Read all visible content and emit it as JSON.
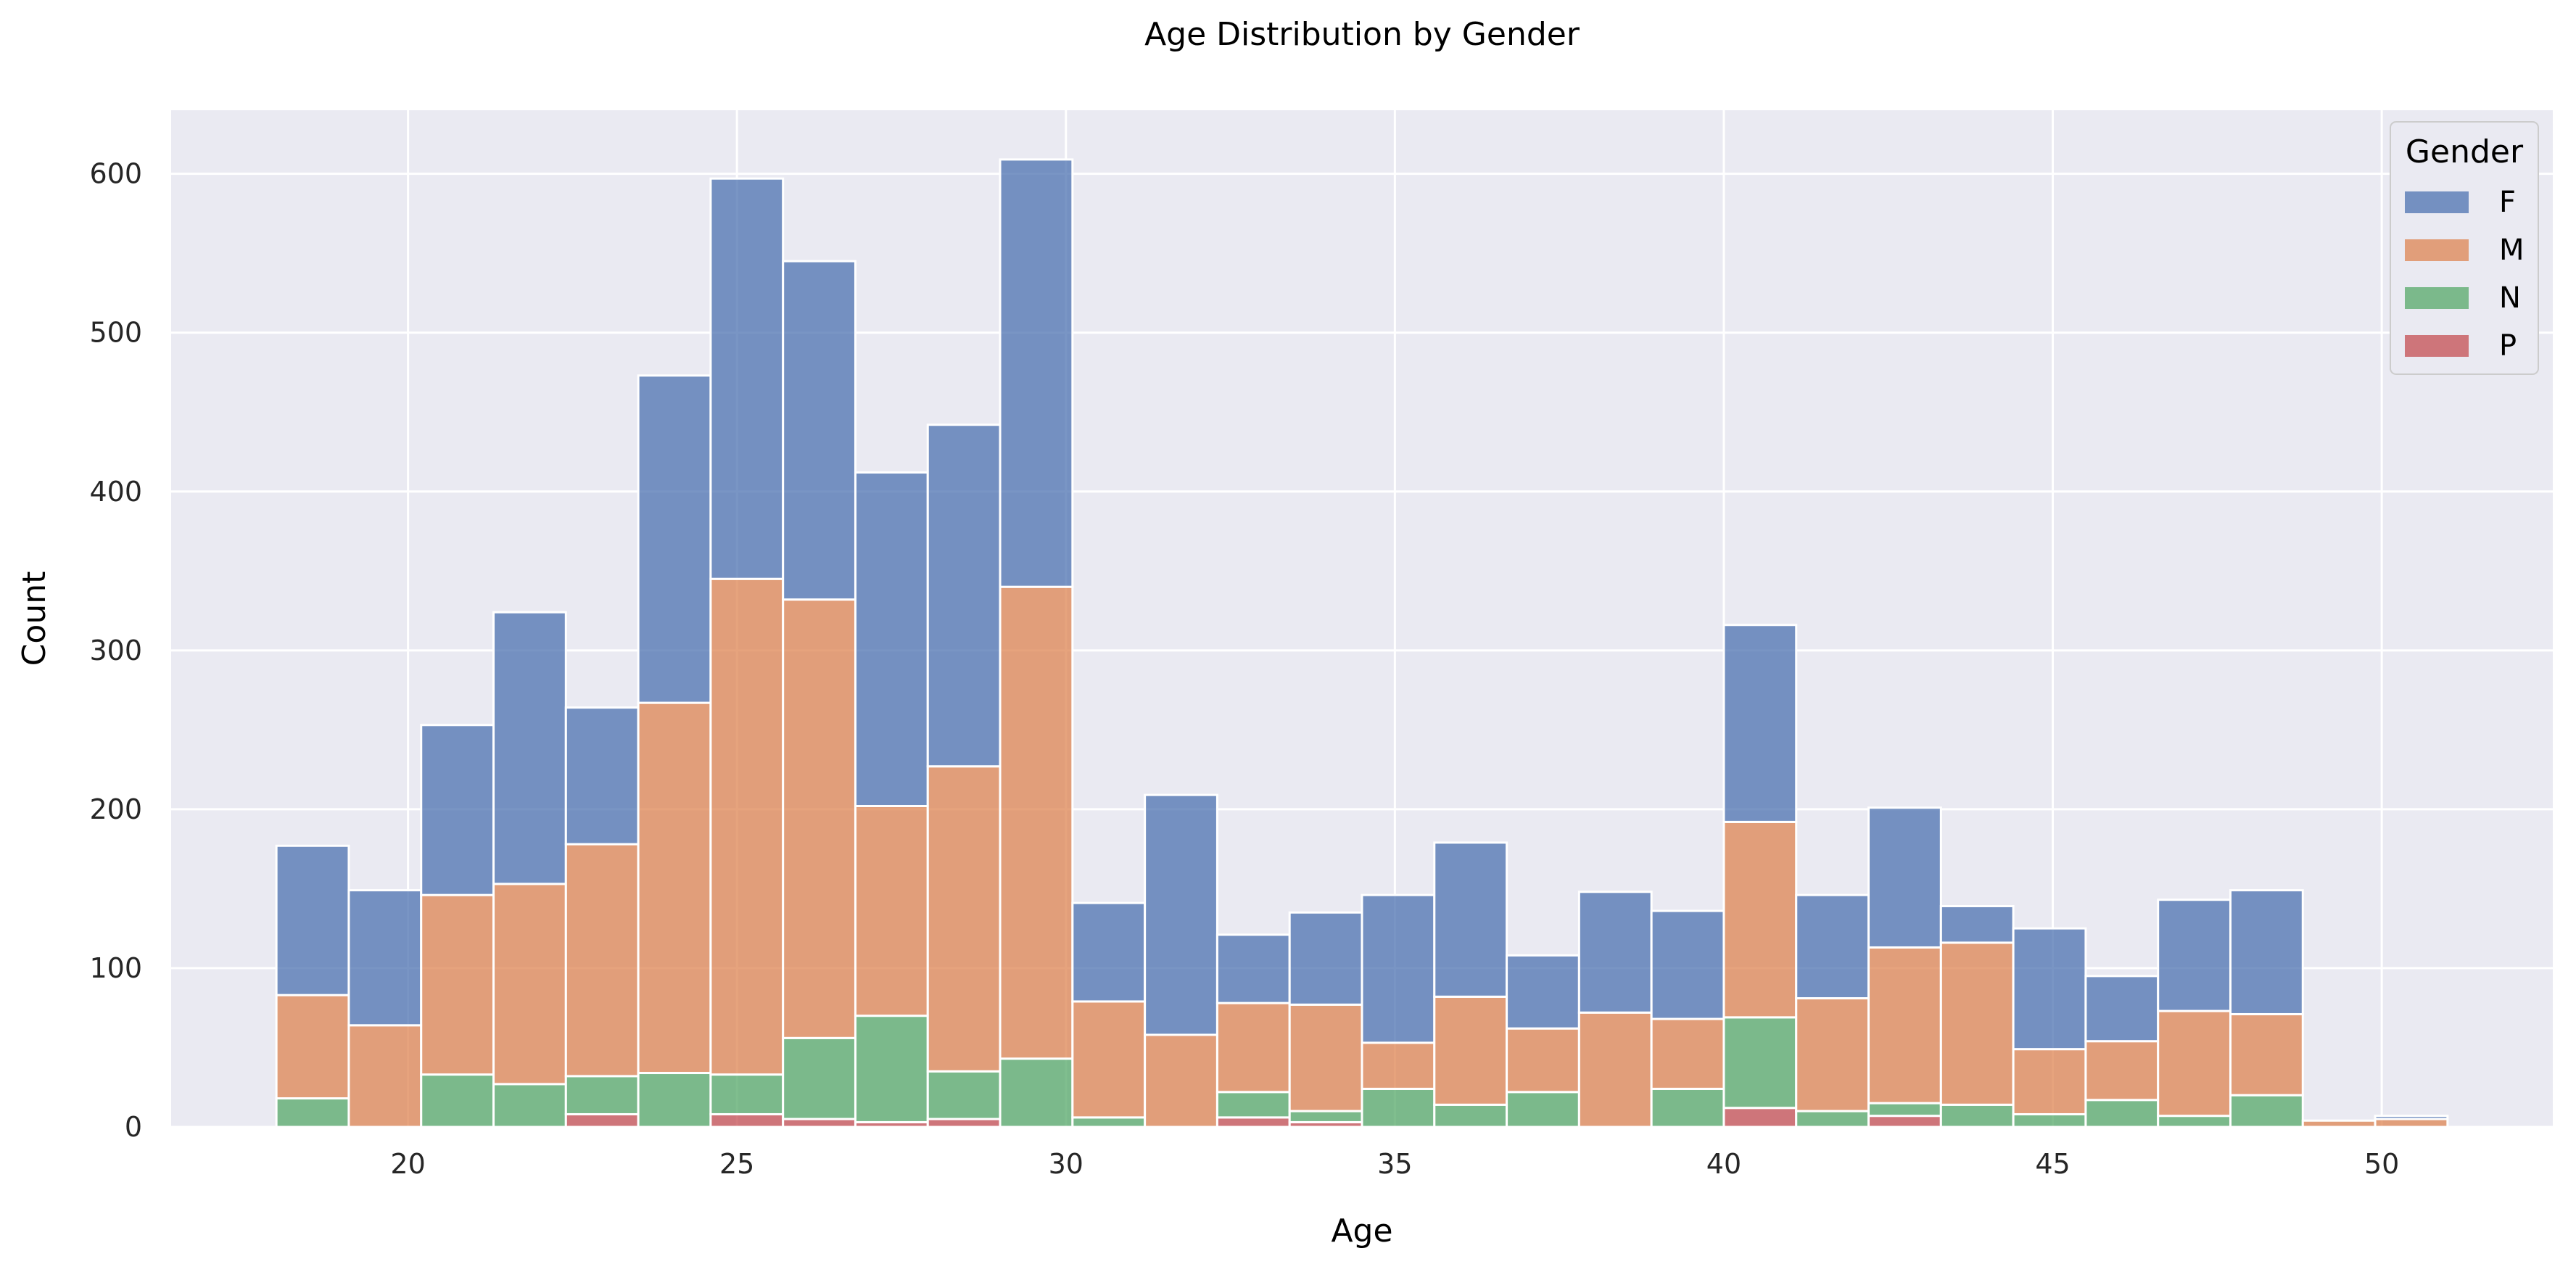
{
  "chart_data": {
    "type": "bar",
    "stacked": true,
    "title": "Age Distribution by Gender",
    "xlabel": "Age",
    "ylabel": "Count",
    "xlim": [
      16.4,
      52.6
    ],
    "ylim": [
      0,
      640
    ],
    "x_ticks": [
      "20",
      "25",
      "30",
      "35",
      "40",
      "45",
      "50"
    ],
    "y_ticks": [
      "0",
      "100",
      "200",
      "300",
      "400",
      "500",
      "600"
    ],
    "grid": true,
    "legend": {
      "title": "Gender",
      "placement": "top-right"
    },
    "bin_start": 18,
    "bin_width": 1.1,
    "series": [
      {
        "name": "P",
        "color": "#c44e52",
        "values": [
          0,
          0,
          0,
          0,
          8,
          0,
          8,
          5,
          3,
          5,
          0,
          0,
          0,
          6,
          3,
          0,
          0,
          0,
          0,
          0,
          12,
          0,
          7,
          0,
          0,
          0,
          0,
          0,
          0,
          0,
          0
        ]
      },
      {
        "name": "N",
        "color": "#55a868",
        "values": [
          18,
          0,
          33,
          27,
          24,
          34,
          25,
          51,
          67,
          30,
          43,
          6,
          0,
          16,
          7,
          24,
          14,
          22,
          0,
          24,
          57,
          10,
          8,
          14,
          8,
          17,
          7,
          20,
          0,
          0,
          0
        ]
      },
      {
        "name": "M",
        "color": "#dd8452",
        "values": [
          65,
          64,
          113,
          126,
          146,
          233,
          312,
          276,
          132,
          192,
          297,
          73,
          58,
          56,
          67,
          29,
          68,
          40,
          72,
          44,
          123,
          71,
          98,
          102,
          41,
          37,
          66,
          51,
          4,
          5,
          0
        ]
      },
      {
        "name": "F",
        "color": "#4c72b0",
        "values": [
          94,
          85,
          107,
          171,
          86,
          206,
          252,
          213,
          210,
          215,
          269,
          62,
          151,
          43,
          58,
          93,
          97,
          46,
          76,
          68,
          124,
          65,
          88,
          23,
          76,
          41,
          70,
          78,
          0,
          2,
          0
        ]
      }
    ]
  }
}
